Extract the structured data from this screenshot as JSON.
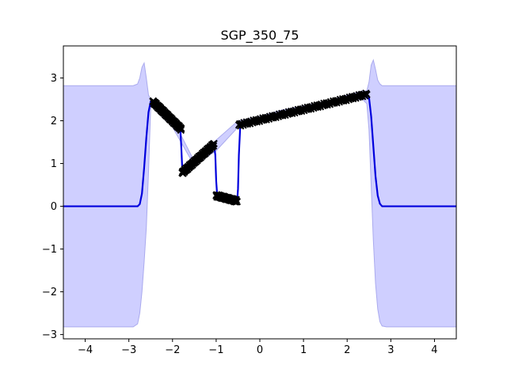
{
  "chart_data": {
    "type": "line",
    "title": "SGP_350_75",
    "xlabel": "",
    "ylabel": "",
    "xlim": [
      -4.5,
      4.5
    ],
    "ylim": [
      -3.1,
      3.75
    ],
    "xticks": [
      -4,
      -3,
      -2,
      -1,
      0,
      1,
      2,
      3,
      4
    ],
    "yticks": [
      -3,
      -2,
      -1,
      0,
      1,
      2,
      3
    ],
    "xtick_labels": [
      "−4",
      "−3",
      "−2",
      "−1",
      "0",
      "1",
      "2",
      "3",
      "4"
    ],
    "ytick_labels": [
      "−3",
      "−2",
      "−1",
      "0",
      "1",
      "2",
      "3"
    ],
    "grid": false,
    "colors": {
      "mean": "#0000dd",
      "band": "#ccccff",
      "band_edge": "#aaaaee",
      "points": "#000000"
    },
    "mean": {
      "x": [
        -4.5,
        -2.8,
        -2.75,
        -2.7,
        -2.65,
        -2.6,
        -2.55,
        -2.5,
        -2.45,
        -2.4,
        -2.3,
        -2.2,
        -2.1,
        -2.0,
        -1.9,
        -1.82,
        -1.8,
        -1.78,
        -1.75,
        -1.7,
        -1.6,
        -1.5,
        -1.4,
        -1.3,
        -1.2,
        -1.1,
        -1.05,
        -1.02,
        -1.0,
        -0.98,
        -0.95,
        -0.9,
        -0.8,
        -0.7,
        -0.6,
        -0.52,
        -0.5,
        -0.48,
        -0.45,
        -0.4,
        0.0,
        0.5,
        1.0,
        1.5,
        2.0,
        2.45,
        2.5,
        2.55,
        2.6,
        2.65,
        2.7,
        2.75,
        2.8,
        4.5
      ],
      "y": [
        0.0,
        0.0,
        0.05,
        0.3,
        0.9,
        1.6,
        2.2,
        2.45,
        2.42,
        2.35,
        2.25,
        2.15,
        2.05,
        1.95,
        1.85,
        1.8,
        1.4,
        0.95,
        0.78,
        0.85,
        0.95,
        1.05,
        1.15,
        1.25,
        1.35,
        1.42,
        1.45,
        1.2,
        0.6,
        0.3,
        0.25,
        0.23,
        0.2,
        0.18,
        0.15,
        0.12,
        0.4,
        1.2,
        1.85,
        1.92,
        2.03,
        2.17,
        2.28,
        2.4,
        2.52,
        2.62,
        2.55,
        2.1,
        1.4,
        0.7,
        0.25,
        0.06,
        0.0,
        0.0
      ]
    },
    "confidence_band": {
      "x": [
        -4.5,
        -2.9,
        -2.8,
        -2.75,
        -2.7,
        -2.65,
        -2.6,
        -2.55,
        -2.5,
        -2.45,
        -2.35,
        -2.25,
        -2.0,
        -1.5,
        -1.0,
        -0.5,
        0.0,
        0.5,
        1.0,
        1.5,
        2.0,
        2.35,
        2.45,
        2.5,
        2.55,
        2.6,
        2.65,
        2.7,
        2.75,
        2.8,
        2.9,
        4.5
      ],
      "upper": [
        2.82,
        2.82,
        2.86,
        3.0,
        3.25,
        3.35,
        3.0,
        2.6,
        2.5,
        2.45,
        2.35,
        2.3,
        2.05,
        1.05,
        1.55,
        2.0,
        2.1,
        2.25,
        2.35,
        2.45,
        2.6,
        2.7,
        2.7,
        2.9,
        3.3,
        3.42,
        3.2,
        2.95,
        2.86,
        2.82,
        2.82,
        2.82
      ],
      "lower": [
        -2.82,
        -2.82,
        -2.75,
        -2.5,
        -2.0,
        -1.3,
        -0.5,
        0.8,
        2.3,
        2.35,
        2.2,
        2.1,
        1.85,
        0.95,
        1.3,
        1.85,
        1.95,
        2.1,
        2.2,
        2.35,
        2.45,
        2.5,
        2.4,
        1.8,
        0.5,
        -0.8,
        -1.8,
        -2.4,
        -2.7,
        -2.8,
        -2.82,
        -2.82
      ]
    },
    "observations": [
      {
        "segment": 1,
        "x_range": [
          -2.45,
          -1.8
        ],
        "y_range": [
          2.45,
          1.8
        ],
        "count": 75
      },
      {
        "segment": 2,
        "x_range": [
          -1.78,
          -1.05
        ],
        "y_range": [
          0.78,
          1.45
        ],
        "count": 75
      },
      {
        "segment": 3,
        "x_range": [
          -1.0,
          -0.52
        ],
        "y_range": [
          0.25,
          0.12
        ],
        "count": 50
      },
      {
        "segment": 4,
        "x_range": [
          -0.48,
          2.45
        ],
        "y_range": [
          1.9,
          2.62
        ],
        "count": 150
      }
    ]
  }
}
